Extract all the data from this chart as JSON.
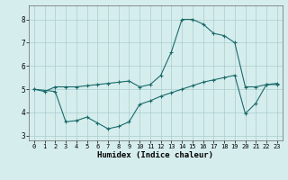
{
  "xlabel": "Humidex (Indice chaleur)",
  "xlim": [
    -0.5,
    23.5
  ],
  "ylim": [
    2.8,
    8.6
  ],
  "yticks": [
    3,
    4,
    5,
    6,
    7,
    8
  ],
  "xticks": [
    0,
    1,
    2,
    3,
    4,
    5,
    6,
    7,
    8,
    9,
    10,
    11,
    12,
    13,
    14,
    15,
    16,
    17,
    18,
    19,
    20,
    21,
    22,
    23
  ],
  "bg_color": "#d6eded",
  "grid_color": "#aacccc",
  "line_color": "#1a6b6b",
  "line1_x": [
    0,
    1,
    2,
    3,
    4,
    5,
    6,
    7,
    8,
    9,
    10,
    11,
    12,
    13,
    14,
    15,
    16,
    17,
    18,
    19,
    20,
    21,
    22,
    23
  ],
  "line1_y": [
    5.0,
    4.9,
    5.1,
    5.1,
    5.1,
    5.15,
    5.2,
    5.25,
    5.3,
    5.35,
    5.1,
    5.2,
    5.6,
    6.6,
    8.0,
    8.0,
    7.8,
    7.4,
    7.3,
    7.0,
    5.1,
    5.1,
    5.2,
    5.2
  ],
  "line2_x": [
    0,
    2,
    3,
    4,
    5,
    6,
    7,
    8,
    9,
    10,
    11,
    12,
    13,
    14,
    15,
    16,
    17,
    18,
    19,
    20,
    21,
    22,
    23
  ],
  "line2_y": [
    5.0,
    4.9,
    3.6,
    3.65,
    3.8,
    3.55,
    3.3,
    3.4,
    3.6,
    4.35,
    4.5,
    4.7,
    4.85,
    5.0,
    5.15,
    5.3,
    5.4,
    5.5,
    5.6,
    3.95,
    4.4,
    5.2,
    5.25
  ]
}
